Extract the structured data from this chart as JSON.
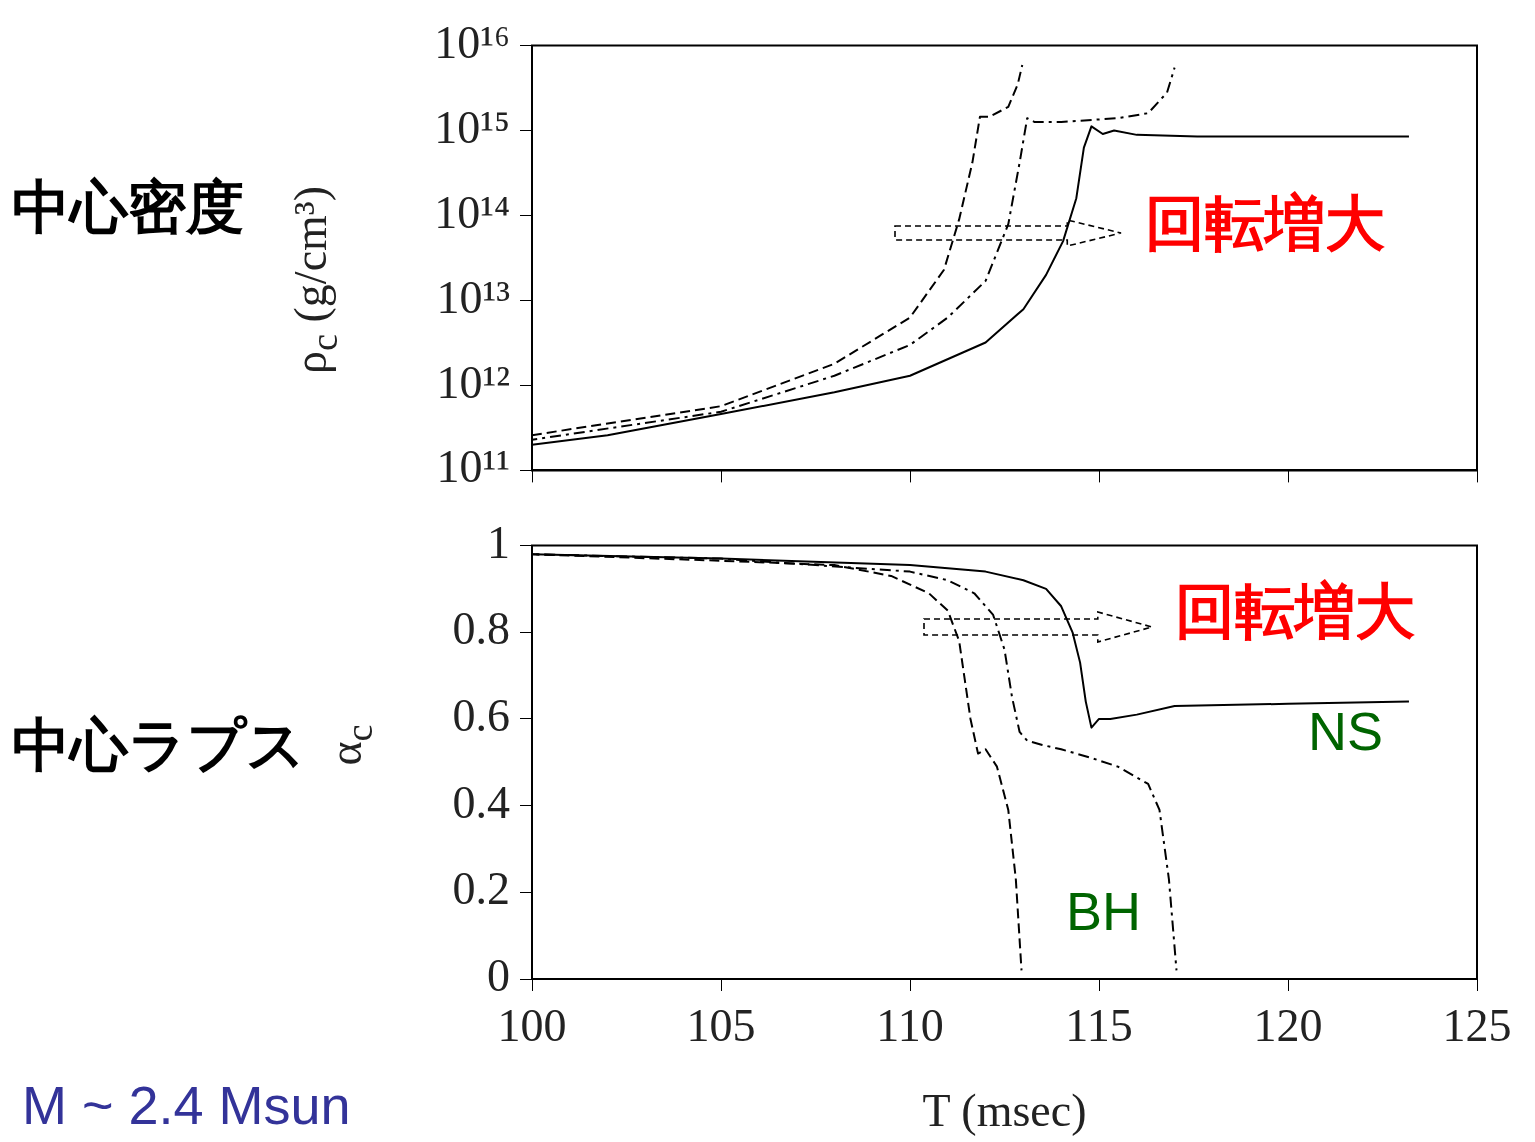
{
  "chart_data": [
    {
      "type": "line",
      "ylabel": "ρ$_{c}$ (g/cm³)",
      "annotations": [
        "中心密度",
        "回転増大"
      ],
      "log": "y",
      "tick_labels": "y",
      "legend": false,
      "grid": false,
      "xlim": [
        100,
        125
      ],
      "xticks": [
        100,
        105,
        110,
        115,
        120,
        125
      ],
      "ylim": [
        100000000000.0,
        1e+16
      ],
      "yticks": [
        {
          "value": 100000000000.0,
          "label": "10¹¹"
        },
        {
          "value": 1000000000000.0,
          "label": "10¹²"
        },
        {
          "value": 10000000000000.0,
          "label": "10¹³"
        },
        {
          "value": 100000000000000.0,
          "label": "10¹⁴"
        },
        {
          "value": 1000000000000000.0,
          "label": "10¹⁵"
        },
        {
          "value": 1e+16,
          "label": "10¹⁶"
        }
      ],
      "series": [
        {
          "color": "#000000",
          "line_style": "solid",
          "x": [
            100,
            102,
            105,
            108,
            110,
            112,
            113,
            113.6,
            114.05,
            114.4,
            114.6,
            114.8,
            115.1,
            115.4,
            116,
            117.6,
            123.2
          ],
          "values": [
            200000000000.0,
            260000000000.0,
            460000000000.0,
            830000000000.0,
            1300000000000.0,
            3200000000000.0,
            7900000000000.0,
            20000000000000.0,
            50000000000000.0,
            160000000000000.0,
            630000000000000.0,
            1120000000000000.0,
            910000000000000.0,
            1000000000000000.0,
            890000000000000.0,
            850000000000000.0,
            850000000000000.0
          ]
        },
        {
          "color": "#000000",
          "line_style": "dashed",
          "x": [
            100,
            105,
            108,
            110,
            110.9,
            111.3,
            111.65,
            111.85,
            112.1,
            112.6,
            112.85,
            112.97
          ],
          "values": [
            260000000000.0,
            570000000000.0,
            1800000000000.0,
            6300000000000.0,
            23000000000000.0,
            90000000000000.0,
            420000000000000.0,
            1450000000000000.0,
            1450000000000000.0,
            1900000000000000.0,
            3500000000000000.0,
            5900000000000000.0
          ]
        },
        {
          "color": "#000000",
          "line_style": "dashdot",
          "x": [
            100,
            105,
            108,
            110,
            111,
            112,
            112.6,
            112.9,
            113.1,
            113.3,
            114,
            115.5,
            116.3,
            116.8,
            117.0
          ],
          "values": [
            230000000000.0,
            490000000000.0,
            1300000000000.0,
            3000000000000.0,
            6300000000000.0,
            17000000000000.0,
            79000000000000.0,
            420000000000000.0,
            1400000000000000.0,
            1260000000000000.0,
            1260000000000000.0,
            1400000000000000.0,
            1600000000000000.0,
            2800000000000000.0,
            5500000000000000.0
          ]
        }
      ]
    },
    {
      "type": "line",
      "xlabel": "T (msec)",
      "ylabel": "α$_{c}$",
      "annotations": [
        "中心ラプス",
        "回転増大",
        "NS",
        "BH",
        "M ~ 2.4 Msun"
      ],
      "legend": false,
      "grid": false,
      "xlim": [
        100,
        125
      ],
      "xticks": [
        100,
        105,
        110,
        115,
        120,
        125
      ],
      "ylim": [
        0,
        1
      ],
      "yticks": [
        0,
        0.2,
        0.4,
        0.6,
        0.8,
        1
      ],
      "series": [
        {
          "color": "#000000",
          "line_style": "solid",
          "x": [
            100,
            105,
            110,
            112,
            113,
            113.6,
            114,
            114.3,
            114.5,
            114.65,
            114.8,
            115.0,
            115.3,
            116,
            117,
            120,
            123.2
          ],
          "values": [
            0.98,
            0.97,
            0.955,
            0.94,
            0.92,
            0.9,
            0.86,
            0.8,
            0.73,
            0.64,
            0.58,
            0.6,
            0.6,
            0.61,
            0.63,
            0.635,
            0.64
          ]
        },
        {
          "color": "#000000",
          "line_style": "dashed",
          "x": [
            100,
            105,
            108,
            109.5,
            110.5,
            111,
            111.3,
            111.45,
            111.6,
            111.8,
            112,
            112.3,
            112.6,
            112.8,
            112.95
          ],
          "values": [
            0.98,
            0.965,
            0.955,
            0.93,
            0.89,
            0.85,
            0.78,
            0.69,
            0.6,
            0.52,
            0.53,
            0.49,
            0.39,
            0.23,
            0.02
          ]
        },
        {
          "color": "#000000",
          "line_style": "dashdot",
          "x": [
            100,
            105,
            110,
            111,
            111.7,
            112.2,
            112.5,
            112.7,
            112.9,
            113.1,
            113.5,
            114,
            114.8,
            115.5,
            116.3,
            116.6,
            116.85,
            117.05
          ],
          "values": [
            0.98,
            0.97,
            0.94,
            0.92,
            0.89,
            0.84,
            0.76,
            0.65,
            0.57,
            0.55,
            0.54,
            0.53,
            0.51,
            0.49,
            0.45,
            0.39,
            0.23,
            0.02
          ]
        }
      ]
    }
  ]
}
